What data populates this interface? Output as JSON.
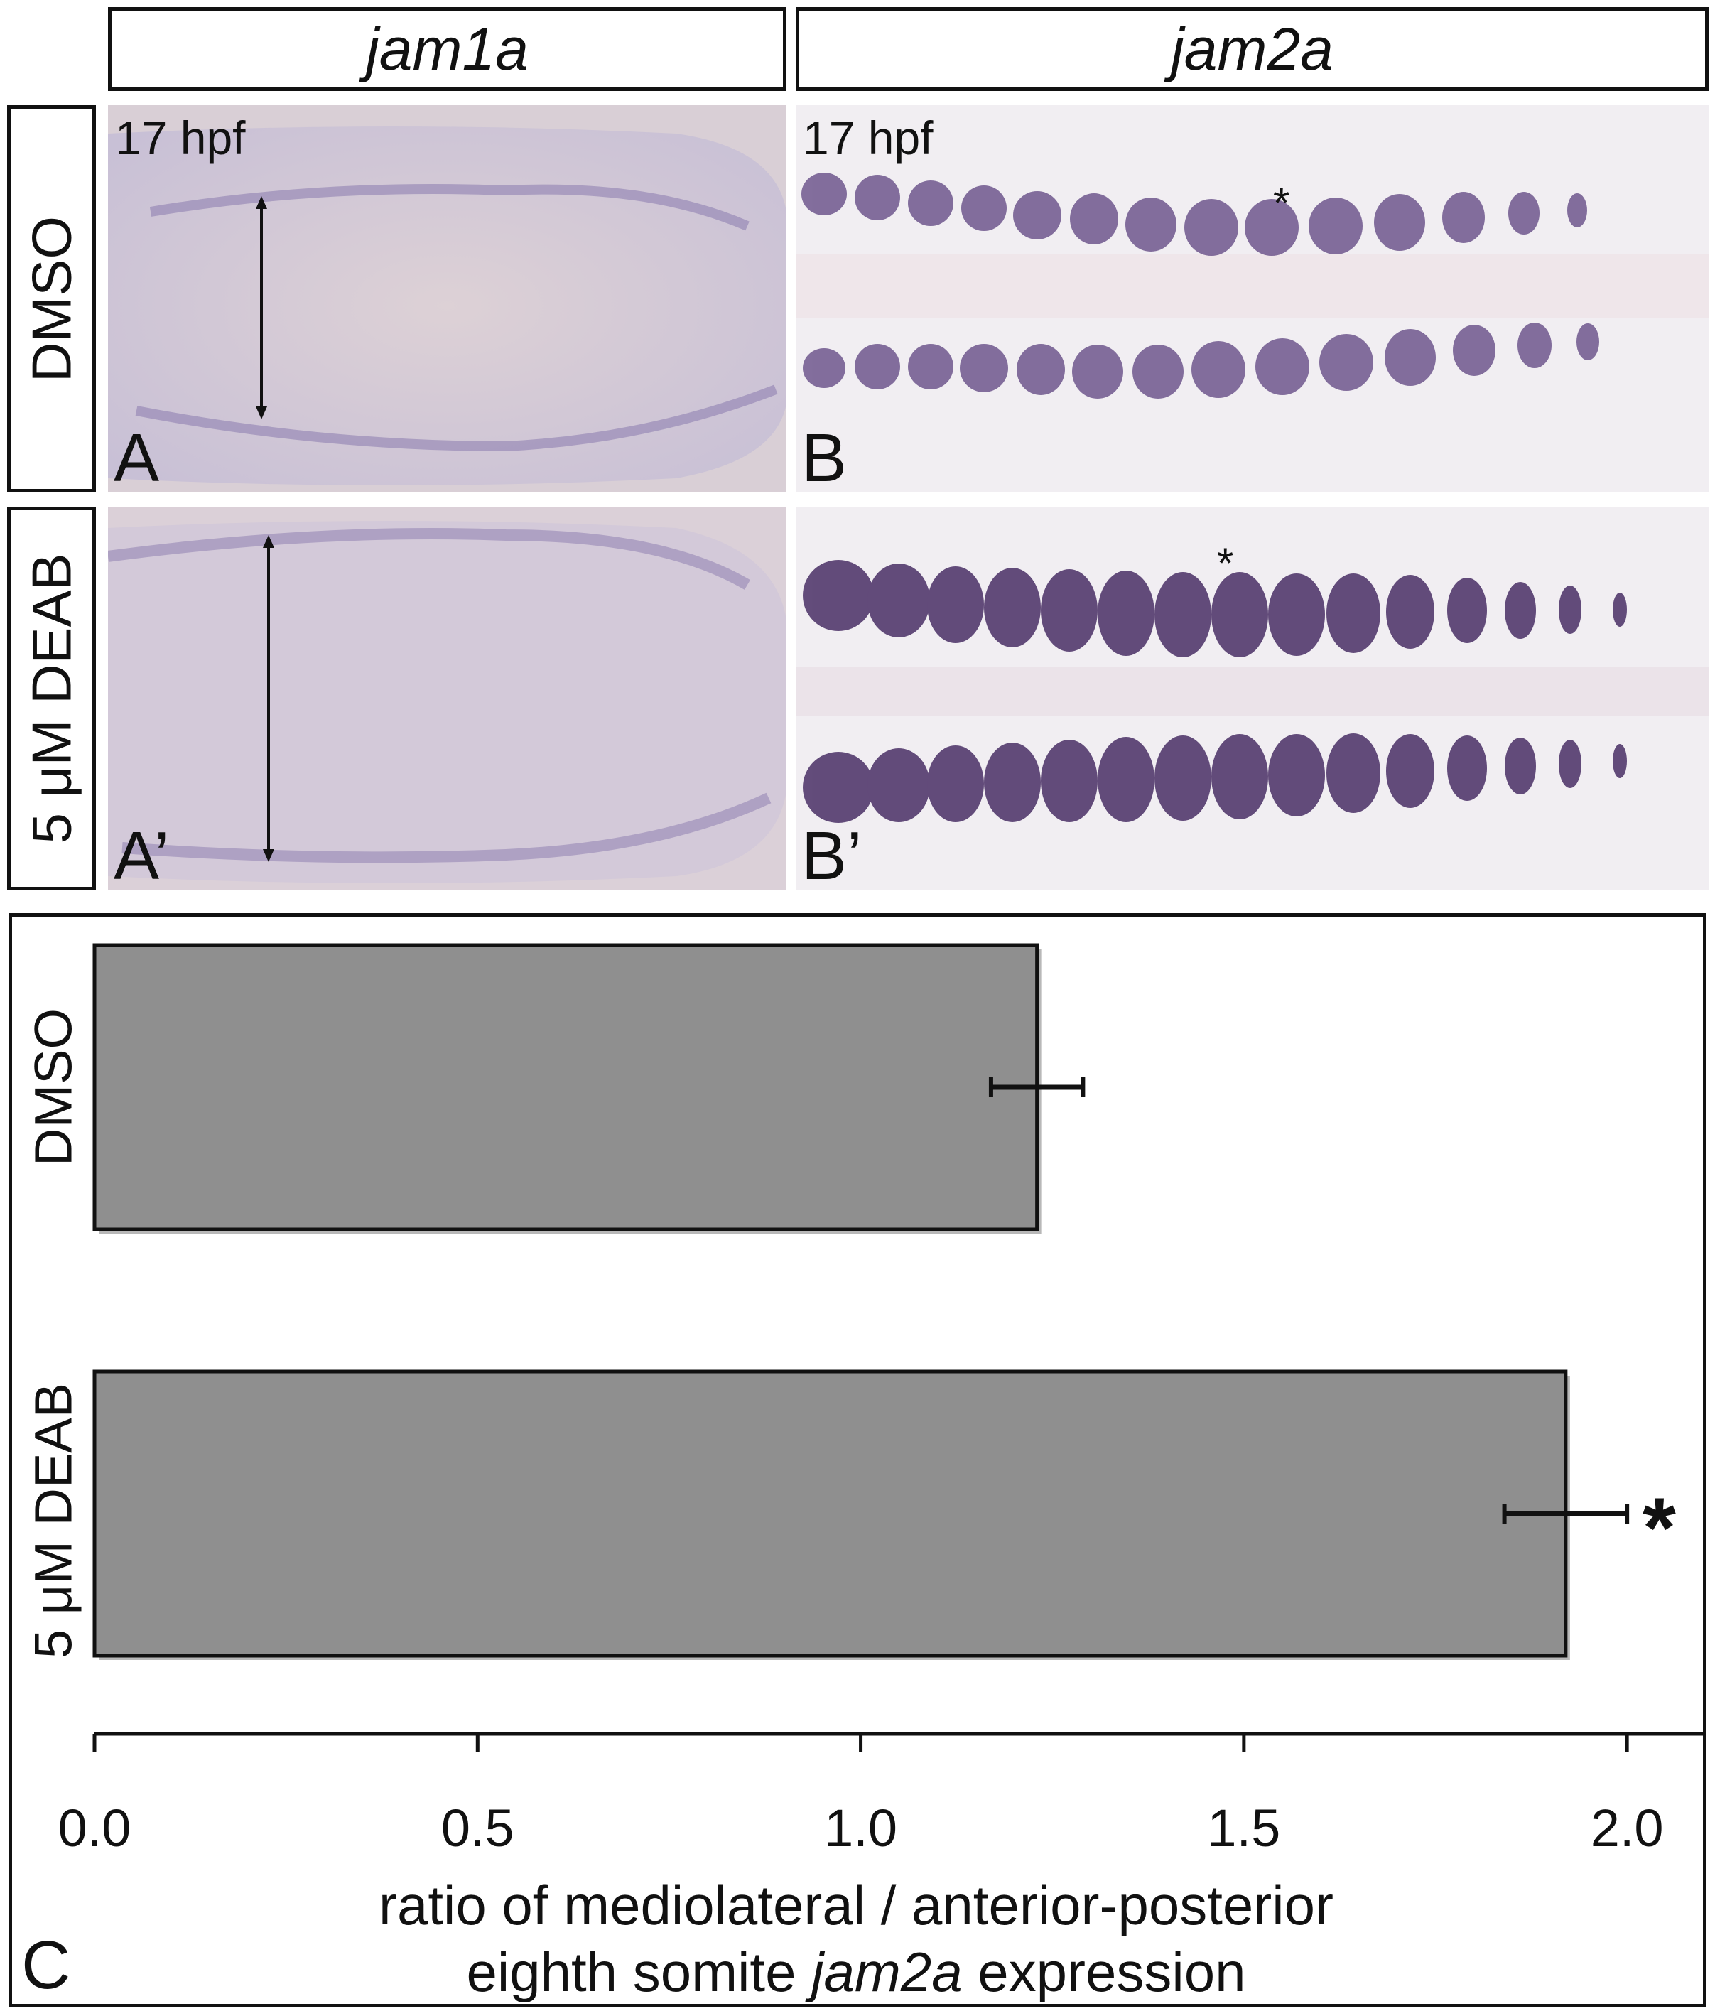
{
  "columns": [
    {
      "gene": "jam1a"
    },
    {
      "gene": "jam2a"
    }
  ],
  "rows": [
    {
      "treatment": "DMSO"
    },
    {
      "treatment": "5 μM DEAB"
    }
  ],
  "panels": {
    "A": {
      "letter": "A",
      "stage": "17 hpf"
    },
    "B": {
      "letter": "B",
      "stage": "17 hpf",
      "marker": "*"
    },
    "A2": {
      "letter": "A’"
    },
    "B2": {
      "letter": "B’",
      "marker": "*"
    }
  },
  "stain_colors": {
    "background_a": "#dcd0d8",
    "stain": "#4a2f66",
    "background_b": "#f1eef2"
  },
  "panel_c_letter": "C",
  "chart_data": {
    "type": "bar",
    "orientation": "horizontal",
    "categories": [
      "DMSO",
      "5 μM DEAB"
    ],
    "values": [
      1.23,
      1.92
    ],
    "errors": [
      0.06,
      0.08
    ],
    "significance": [
      "",
      "*"
    ],
    "xlim": [
      0,
      2.1
    ],
    "xticks": [
      "0.0",
      "0.5",
      "1.0",
      "1.5",
      "2.0"
    ],
    "xlabel_line1": "ratio of mediolateral / anterior-posterior",
    "xlabel_line2_pre": "eighth somite ",
    "xlabel_line2_italic": "jam2a",
    "xlabel_line2_post": " expression",
    "bar_color": "#8f8f8f",
    "grid": false
  }
}
